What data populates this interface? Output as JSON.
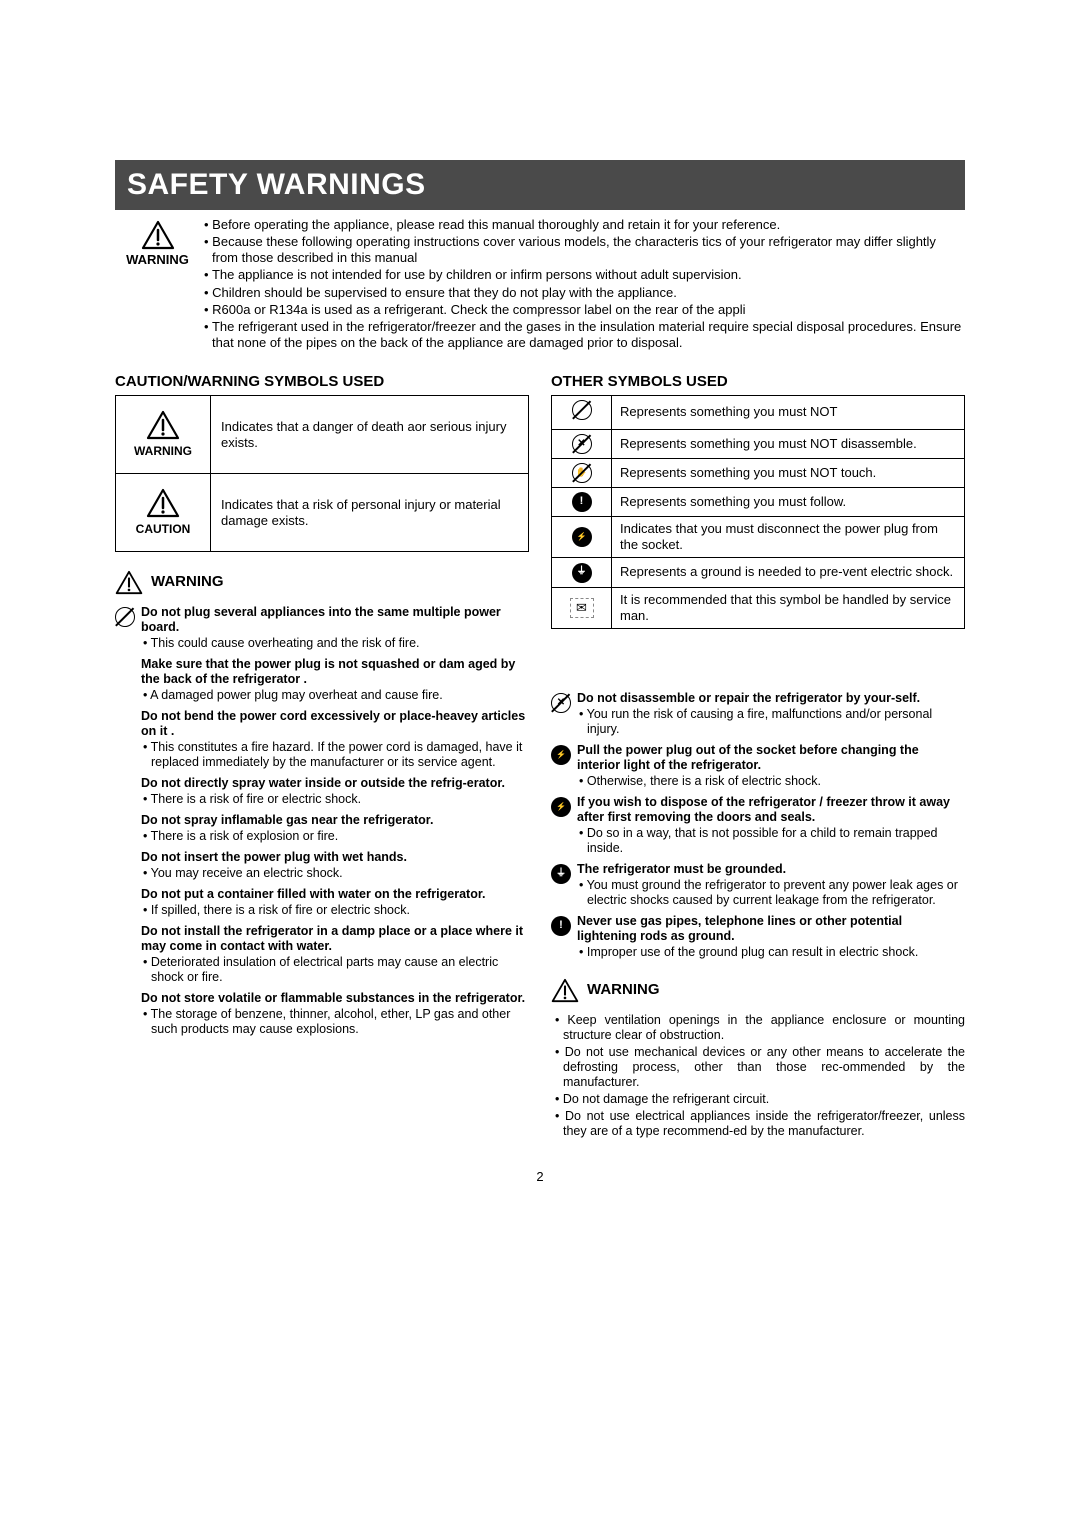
{
  "title": "SAFETY WARNINGS",
  "intro_label": "WARNING",
  "intro_bullets": [
    "Before operating the appliance, please read this manual thoroughly and retain it for your reference.",
    "Because these following operating instructions cover various models, the characteris tics of your refrigerator may differ slightly from those described in this manual",
    "The appliance is not intended for use by children or infirm persons without adult supervision.",
    "Children should be supervised to ensure that they do not play with the appliance.",
    "R600a or R134a is used as a refrigerant. Check the compressor label on the rear of the appli",
    "The refrigerant used in the refrigerator/freezer and the gases in the insulation material require special disposal procedures. Ensure that none of the pipes on the back of the appliance are damaged prior to disposal."
  ],
  "caution_heading": "CAUTION/WARNING SYMBOLS USED",
  "caution_rows": [
    {
      "label": "WARNING",
      "text": "Indicates that a danger of death aor serious injury exists."
    },
    {
      "label": "CAUTION",
      "text": "Indicates that a risk of personal injury or material damage exists."
    }
  ],
  "other_heading": "OTHER SYMBOLS USED",
  "other_rows": [
    {
      "icon": "no",
      "text": "Represents something you must NOT"
    },
    {
      "icon": "no-disassemble",
      "text": "Represents something you must NOT disassemble."
    },
    {
      "icon": "no-touch",
      "text": "Represents something you must NOT touch."
    },
    {
      "icon": "follow",
      "text": "Represents something you must follow."
    },
    {
      "icon": "unplug",
      "text": "Indicates that you must disconnect the power plug from the socket."
    },
    {
      "icon": "ground",
      "text": "Represents a ground is needed to pre-vent electric shock."
    },
    {
      "icon": "service",
      "text": "It is recommended that this symbol be handled by service man."
    }
  ],
  "warn_label": "WARNING",
  "left_warnings": [
    {
      "icon": "no",
      "bold": "Do not plug several appliances into the same multiple power board.",
      "sub": "This could cause overheating and the risk of fire."
    },
    {
      "icon": "",
      "bold": "Make sure that the power plug is not squashed or dam aged by the back of the refrigerator .",
      "sub": "A damaged power plug may overheat and cause fire."
    },
    {
      "icon": "",
      "bold": "Do not bend the power cord excessively or place-heavey articles on it .",
      "sub": "This constitutes a fire hazard. If the power cord is damaged, have it replaced immediately by the manufacturer or its service agent."
    },
    {
      "icon": "",
      "bold": "Do not directly spray water inside or outside the refrig-erator.",
      "sub": "There is a risk of fire or electric shock."
    },
    {
      "icon": "",
      "bold": "Do not spray inflamable gas near the refrigerator.",
      "sub": "There is a risk of explosion or fire."
    },
    {
      "icon": "",
      "bold": "Do not insert the power plug with wet hands.",
      "sub": "You may receive an electric shock."
    },
    {
      "icon": "",
      "bold": "Do not put a container filled with water on the refrigerator.",
      "sub": "If spilled, there is a risk of fire or electric shock."
    },
    {
      "icon": "",
      "bold": "Do not install the refrigerator in a damp place or a place where it may come in contact with water.",
      "sub": "Deteriorated insulation of electrical parts may cause an electric shock or fire."
    },
    {
      "icon": "",
      "bold": "Do not store volatile or flammable substances in the refrigerator.",
      "sub": "The storage of benzene, thinner, alcohol, ether, LP gas and other such products may cause explosions."
    }
  ],
  "right_warnings": [
    {
      "icon": "no-disassemble",
      "bold": "Do not disassemble or repair the refrigerator by your-self.",
      "sub": "You run the risk of causing a fire, malfunctions and/or personal injury."
    },
    {
      "icon": "unplug",
      "bold": "Pull the power plug out of the socket before changing the interior light of the refrigerator.",
      "sub": "Otherwise, there is a risk of electric shock."
    },
    {
      "icon": "unplug",
      "bold": "If you wish to dispose of the refrigerator / freezer throw it away after first removing the doors and seals.",
      "sub": "Do so in a way, that is not possible for a child to remain trapped inside."
    },
    {
      "icon": "ground",
      "bold": "The refrigerator must be grounded.",
      "sub": "You must ground the refrigerator to prevent any power leak ages or electric shocks caused by current leakage from the refrigerator."
    },
    {
      "icon": "follow",
      "bold": "Never use gas pipes, telephone lines or other potential lightening rods as ground.",
      "sub": "Improper use of the ground plug can result in electric shock."
    }
  ],
  "right_extra_label": "WARNING",
  "right_extra": [
    "Keep ventilation openings in the appliance enclosure or mounting structure clear of obstruction.",
    "Do not use mechanical devices or any other means to accelerate the defrosting process, other than those rec-ommended by the manufacturer.",
    "Do not damage the refrigerant circuit.",
    "Do not use electrical appliances inside the refrigerator/freezer, unless they are of a type recommend-ed by the manufacturer."
  ],
  "page_number": "2"
}
